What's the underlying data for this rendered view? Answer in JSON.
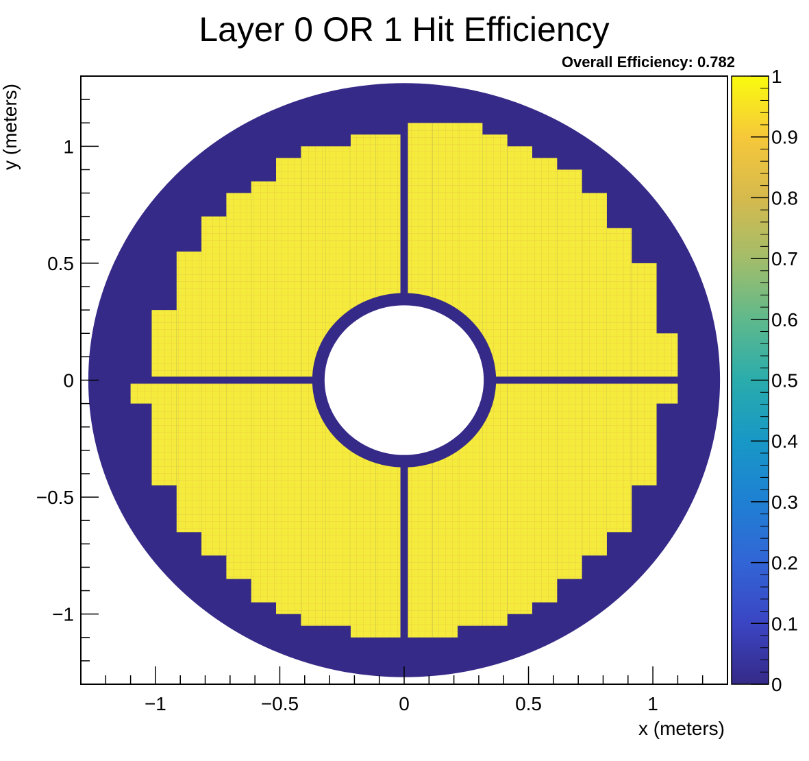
{
  "chart_data": {
    "type": "heatmap",
    "title": "Layer 0 OR 1 Hit Efficiency",
    "annotation": "Overall Efficiency: 0.782",
    "xlabel": "x (meters)",
    "ylabel": "y (meters)",
    "xlim": [
      -1.3,
      1.3
    ],
    "ylim": [
      -1.3,
      1.3
    ],
    "x_ticks": [
      -1,
      -0.5,
      0,
      0.5,
      1
    ],
    "x_tick_labels": [
      "−1",
      "−0.5",
      "0",
      "0.5",
      "1"
    ],
    "y_ticks": [
      -1,
      -0.5,
      0,
      0.5,
      1
    ],
    "y_tick_labels": [
      "−1",
      "−0.5",
      "0",
      "0.5",
      "1"
    ],
    "colorbar": {
      "min": 0,
      "max": 1,
      "ticks": [
        0,
        0.1,
        0.2,
        0.3,
        0.4,
        0.5,
        0.6,
        0.7,
        0.8,
        0.9,
        1
      ],
      "tick_labels": [
        "0",
        "0.1",
        "0.2",
        "0.3",
        "0.4",
        "0.5",
        "0.6",
        "0.7",
        "0.8",
        "0.9",
        "1"
      ]
    },
    "regions": {
      "outer_disk_radius": 1.27,
      "outer_disk_efficiency": 0,
      "inner_hole_radius": 0.32,
      "gap_efficiency": 0,
      "sensor_efficiency": 0.98,
      "gap_width": 0.015,
      "quadrants": [
        {
          "name": "top-left",
          "x_range": [
            -1.1,
            -0.01
          ],
          "y_range": [
            0.01,
            1.0
          ],
          "efficiency": 0.98
        },
        {
          "name": "top-right",
          "x_range": [
            0.01,
            1.1
          ],
          "y_range": [
            0.01,
            1.12
          ],
          "efficiency": 0.98
        },
        {
          "name": "bottom-left",
          "x_range": [
            -1.1,
            -0.01
          ],
          "y_range": [
            -1.12,
            -0.01
          ],
          "efficiency": 0.98
        },
        {
          "name": "bottom-right",
          "x_range": [
            0.01,
            1.1
          ],
          "y_range": [
            -1.12,
            -0.01
          ],
          "efficiency": 0.98
        }
      ]
    },
    "colors": {
      "low": "#352a87",
      "high": "#f9fb0e",
      "sensor_yellow": "#f5eb3c",
      "grid_orange": "#e6b64a"
    }
  }
}
